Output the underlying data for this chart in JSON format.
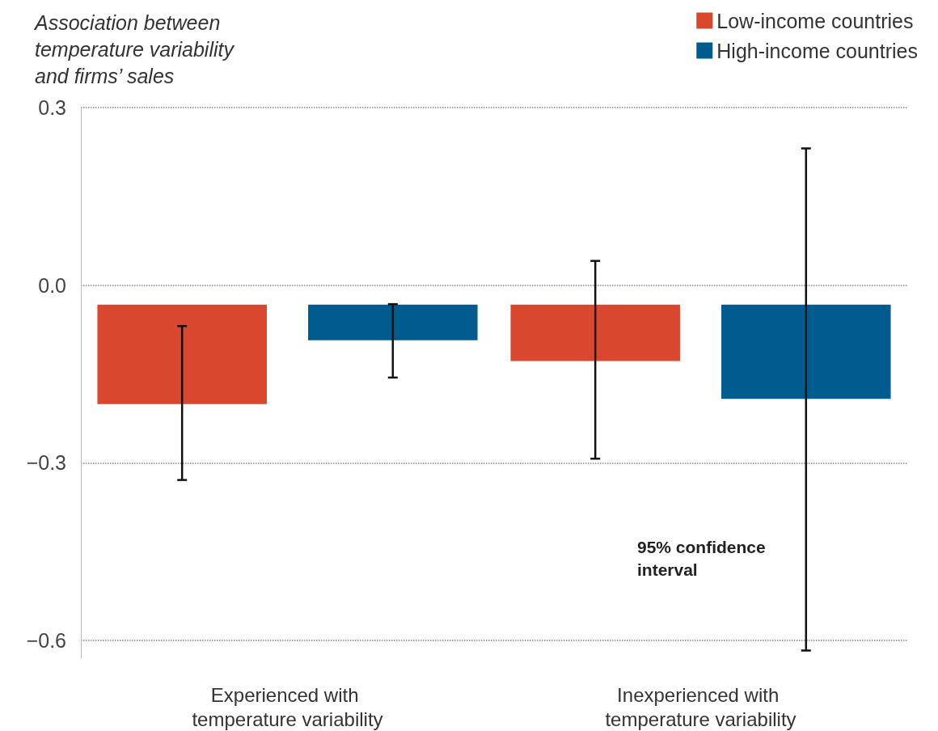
{
  "chart_data": {
    "type": "bar",
    "title": "Association between temperature variability and firms’ sales",
    "categories": [
      "Experienced with temperature variability",
      "Inexperienced with temperature variability"
    ],
    "series": [
      {
        "name": "Low-income countries",
        "color": "#d9472f",
        "base": [
          -0.033,
          -0.033
        ],
        "values": [
          -0.168,
          -0.095
        ],
        "errors": [
          [
            -0.329,
            -0.069
          ],
          [
            -0.293,
            0.041
          ]
        ]
      },
      {
        "name": "High-income countries",
        "color": "#005b8f",
        "base": [
          -0.033,
          -0.033
        ],
        "values": [
          -0.06,
          -0.159
        ],
        "errors": [
          [
            -0.156,
            -0.032
          ],
          [
            -0.617,
            0.231
          ]
        ]
      }
    ],
    "ylim": [
      -0.63,
      0.3
    ],
    "yticks": [
      {
        "value": -0.6,
        "label": "−0.6"
      },
      {
        "value": -0.3,
        "label": "−0.3"
      },
      {
        "value": 0,
        "label": "0.0"
      },
      {
        "value": 0.3,
        "label": "0.3"
      }
    ],
    "grid": "y",
    "legend": "top right",
    "annotations": [
      "95% confidence interval"
    ]
  }
}
